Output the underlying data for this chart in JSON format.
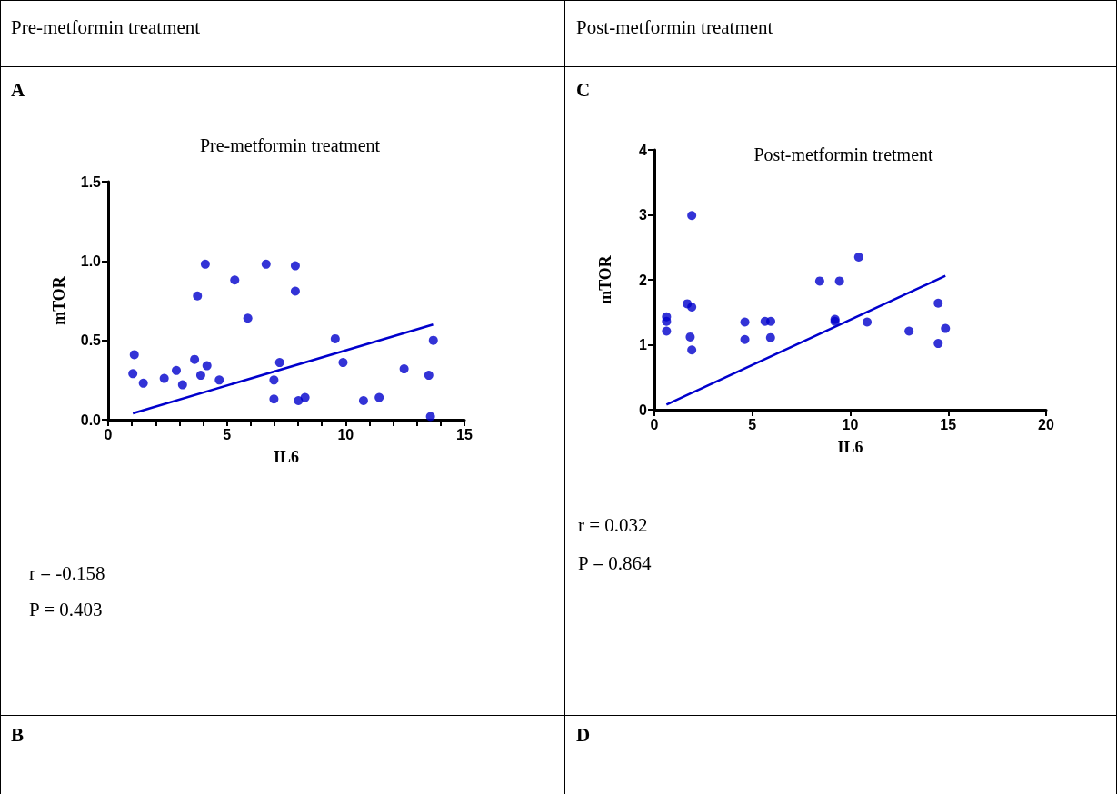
{
  "chart_data": [
    {
      "type": "scatter",
      "title": "Pre-metformin treatment",
      "xlabel": "IL6",
      "ylabel": "mTOR",
      "annotations": [
        "Pre-metformin treatment",
        "A",
        "r = -0.158",
        "P = 0.403",
        "B"
      ],
      "xlim": [
        0,
        15
      ],
      "xticks": [
        0,
        {
          "value": 1,
          "label": null
        },
        {
          "value": 2,
          "label": null
        },
        {
          "value": 3,
          "label": null
        },
        {
          "value": 4,
          "label": null
        },
        5,
        {
          "value": 6,
          "label": null
        },
        {
          "value": 7,
          "label": null
        },
        {
          "value": 8,
          "label": null
        },
        {
          "value": 9,
          "label": null
        },
        10,
        {
          "value": 11,
          "label": null
        },
        {
          "value": 12,
          "label": null
        },
        {
          "value": 13,
          "label": null
        },
        {
          "value": 14,
          "label": null
        },
        15
      ],
      "ylim": [
        0,
        1.5
      ],
      "yticks": [
        {
          "value": 0,
          "label": "0.0"
        },
        {
          "value": 0.5,
          "label": "0.5"
        },
        {
          "value": 1,
          "label": "1.0"
        },
        {
          "value": 1.5,
          "label": "1.5"
        }
      ],
      "grid": false,
      "series": [
        {
          "marker": "circle",
          "color": "#0000cc",
          "x": [
            1.04,
            1.1,
            1.48,
            2.36,
            2.87,
            3.13,
            3.64,
            3.76,
            3.9,
            4.09,
            4.16,
            4.68,
            5.33,
            5.88,
            6.65,
            6.98,
            6.98,
            7.22,
            7.88,
            7.88,
            8.01,
            8.29,
            9.56,
            9.89,
            10.75,
            11.41,
            12.46,
            13.5,
            13.57,
            13.69
          ],
          "values": [
            0.29,
            0.41,
            0.23,
            0.26,
            0.31,
            0.22,
            0.38,
            0.78,
            0.28,
            0.98,
            0.34,
            0.25,
            0.88,
            0.64,
            0.98,
            0.25,
            0.13,
            0.36,
            0.97,
            0.81,
            0.12,
            0.14,
            0.51,
            0.36,
            0.12,
            0.14,
            0.32,
            0.28,
            0.02,
            0.5
          ]
        },
        {
          "type": "line",
          "marker": "none",
          "color": "#0000cc",
          "x": [
            1.04,
            13.68
          ],
          "values": [
            0.04,
            0.6
          ]
        }
      ]
    },
    {
      "type": "scatter",
      "title": "Post-metformin tretment",
      "xlabel": "IL6",
      "ylabel": "mTOR",
      "annotations": [
        "Post-metformin treatment",
        "C",
        "r = 0.032",
        "P = 0.864",
        "D"
      ],
      "xlim": [
        0,
        20
      ],
      "xticks": [
        0,
        5,
        10,
        15,
        20
      ],
      "ylim": [
        0,
        4
      ],
      "yticks": [
        0,
        1,
        2,
        3,
        4
      ],
      "grid": false,
      "series": [
        {
          "marker": "circle",
          "color": "#0000cc",
          "x": [
            0.62,
            0.62,
            0.62,
            1.68,
            1.91,
            1.91,
            1.83,
            1.91,
            4.62,
            4.62,
            5.65,
            5.94,
            5.93,
            8.44,
            9.45,
            9.22,
            9.22,
            10.43,
            10.86,
            13.0,
            14.49,
            14.49,
            14.86
          ],
          "values": [
            1.43,
            1.36,
            1.21,
            1.63,
            1.58,
            2.99,
            1.12,
            0.92,
            1.35,
            1.08,
            1.36,
            1.36,
            1.11,
            1.98,
            1.98,
            1.39,
            1.36,
            2.35,
            1.35,
            1.21,
            1.64,
            1.02,
            1.25
          ]
        },
        {
          "type": "line",
          "marker": "none",
          "color": "#0000cc",
          "x": [
            0.62,
            14.86
          ],
          "values": [
            0.08,
            2.06
          ]
        }
      ]
    }
  ]
}
